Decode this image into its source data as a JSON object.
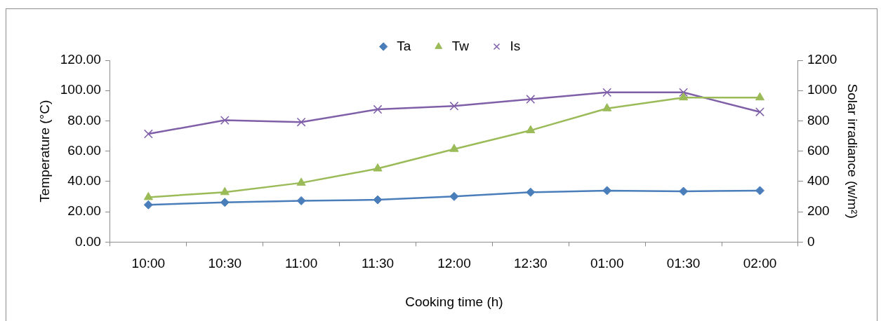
{
  "chart_data": {
    "type": "line",
    "categories": [
      "10:00",
      "10:30",
      "11:00",
      "11:30",
      "12:00",
      "12:30",
      "01:00",
      "01:30",
      "02:00"
    ],
    "xlabel": "Cooking time (h)",
    "ylabel": "Temperature (°C)",
    "y2label": "Solar irradiance (w/m²)",
    "ylim": [
      0,
      120
    ],
    "yticks": [
      {
        "value": 0,
        "label": "0.00"
      },
      {
        "value": 20,
        "label": "20.00"
      },
      {
        "value": 40,
        "label": "40.00"
      },
      {
        "value": 60,
        "label": "60.00"
      },
      {
        "value": 80,
        "label": "80.00"
      },
      {
        "value": 100,
        "label": "100.00"
      },
      {
        "value": 120,
        "label": "120.00"
      }
    ],
    "y2lim": [
      0,
      1200
    ],
    "y2ticks": [
      0,
      200,
      400,
      600,
      800,
      1000,
      1200
    ],
    "legend": "top",
    "grid": false,
    "series": [
      {
        "name": "Ta",
        "color": "#4a7ebb",
        "marker": "diamond",
        "values": [
          24.6,
          26.2,
          27.3,
          27.9,
          30.1,
          32.9,
          34.0,
          33.5,
          34.0
        ]
      },
      {
        "name": "Tw",
        "color": "#9bbb59",
        "marker": "triangle",
        "values": [
          29.6,
          32.9,
          39.1,
          48.5,
          61.4,
          73.7,
          88.2,
          95.4,
          95.4
        ]
      },
      {
        "name": "Is",
        "color": "#7f5fa8",
        "marker": "cross",
        "axis": "y2",
        "values": [
          714,
          804,
          792,
          876,
          898,
          943,
          988,
          988,
          859
        ]
      }
    ]
  }
}
